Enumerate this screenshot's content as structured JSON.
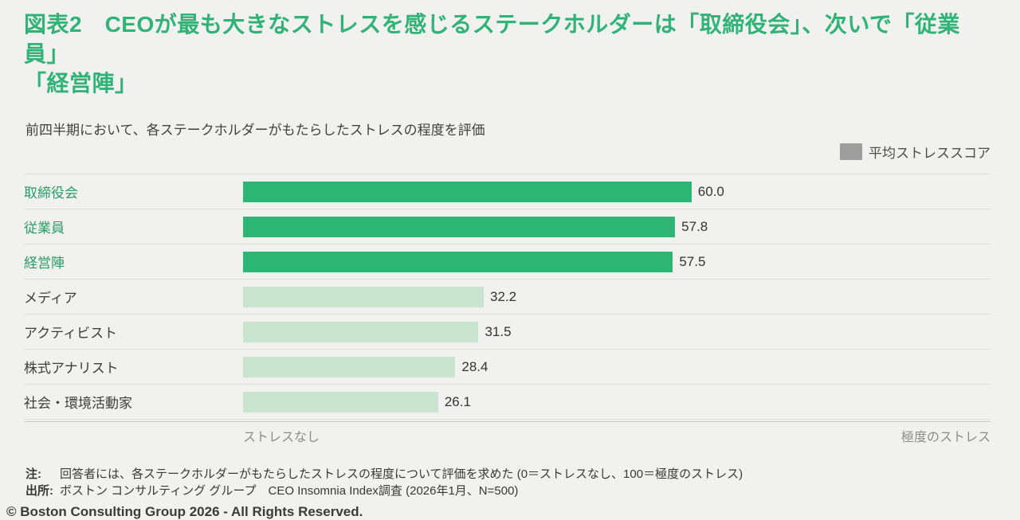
{
  "page": {
    "background": "#f1f1ef",
    "title_line1": "図表2　CEOが最も大きなストレスを感じるステークホルダーは「取締役会」、次いで「従業員」",
    "title_line2": "「経営陣」",
    "subtitle": "前四半期において、各ステークホルダーがもたらしたストレスの程度を評価",
    "footer": "© Boston Consulting Group 2026 - All Rights Reserved."
  },
  "legend": {
    "label": "平均ストレススコア",
    "swatch_color": "#9e9e9e"
  },
  "chart_data": {
    "type": "bar",
    "orientation": "horizontal",
    "title": "図表2　CEOが最も大きなストレスを感じるステークホルダーは「取締役会」、次いで「従業員」「経営陣」",
    "subtitle": "前四半期において、各ステークホルダーがもたらしたストレスの程度を評価",
    "categories": [
      "取締役会",
      "従業員",
      "経営陣",
      "メディア",
      "アクティビスト",
      "株式アナリスト",
      "社会・環境活動家"
    ],
    "values": [
      60.0,
      57.8,
      57.5,
      32.2,
      31.5,
      28.4,
      26.1
    ],
    "value_labels": [
      "60.0",
      "57.8",
      "57.5",
      "32.2",
      "31.5",
      "28.4",
      "26.1"
    ],
    "highlighted": [
      true,
      true,
      true,
      false,
      false,
      false,
      false
    ],
    "xlim": [
      0,
      100
    ],
    "axis_left_label": "ストレスなし",
    "axis_right_label": "極度のストレス",
    "legend_label": "平均ストレススコア",
    "bar_color_highlight": "#2db673",
    "bar_color_normal": "#c9e5d0",
    "category_color_highlight": "#2c9b66",
    "grid": false,
    "legend_position": "top-right"
  },
  "notes": {
    "note_label": "注:",
    "note_text": "回答者には、各ステークホルダーがもたらしたストレスの程度について評価を求めた (0＝ストレスなし、100＝極度のストレス)",
    "source_label": "出所:",
    "source_text": "ボストン コンサルティング グループ　CEO Insomnia Index調査 (2026年1月、N=500)"
  }
}
